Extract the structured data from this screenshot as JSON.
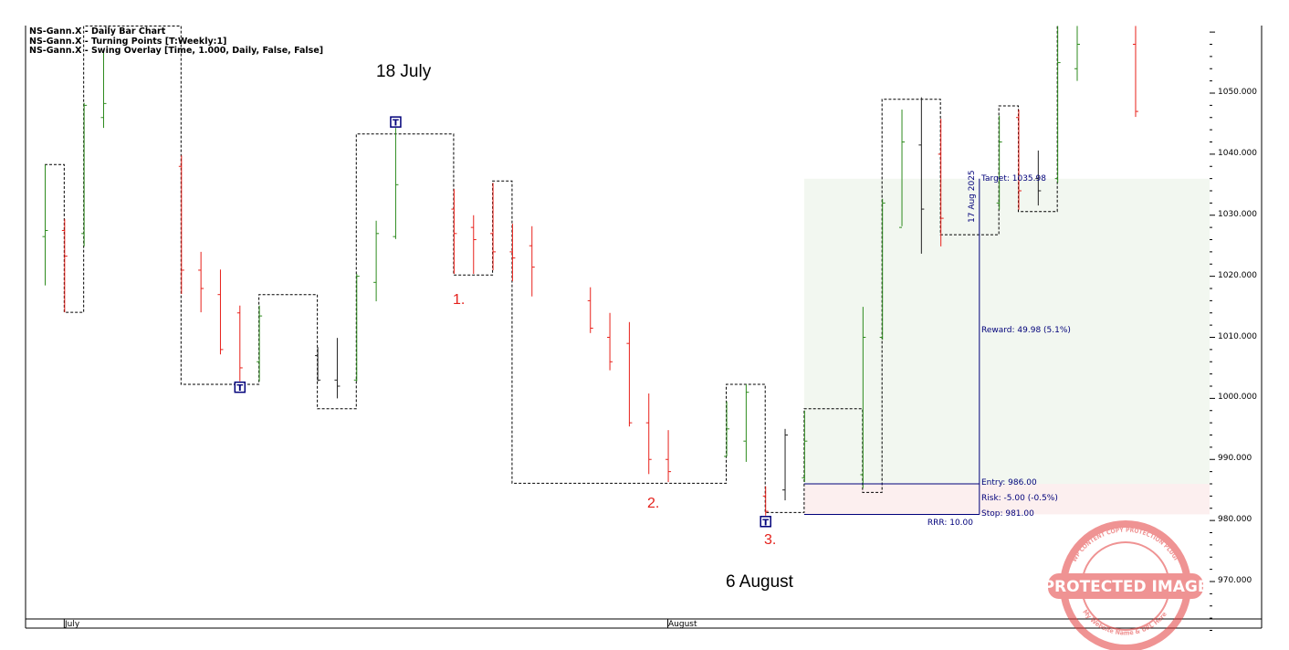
{
  "legend": [
    "NS-Gann.X - Daily Bar Chart",
    "NS-Gann.X - Turning Points [T:Weekly:1]",
    "NS-Gann.X - Swing Overlay [Time, 1.000, Daily, False, False]"
  ],
  "annotations": {
    "high_date": "18 July",
    "low_date": "6 August",
    "point1": "1.",
    "point2": "2.",
    "point3": "3."
  },
  "trade": {
    "date_label": "17 Aug 2025",
    "target_label": "Target: 1035.98",
    "reward_label": "Reward: 49.98 (5.1%)",
    "entry_label": "Entry: 986.00",
    "risk_label": "Risk: -5.00 (-0.5%)",
    "stop_label": "Stop: 981.00",
    "rrr_label": "RRR: 10.00"
  },
  "date_axis": {
    "month1": "July",
    "month2": "August"
  },
  "watermark": {
    "main": "PROTECTED IMAGE",
    "ring": "WP CONTENT COPY PROTECTION PLUGIN",
    "bottom": "My Website Name & URL Here"
  },
  "colors": {
    "up": "#2e8b1e",
    "down": "#e8201a",
    "neutral": "#222222",
    "label": "#00007a",
    "reward_zone": "#f2f7f0",
    "risk_zone": "#fcefef",
    "stamp": "#e33b3b"
  },
  "chart_data": {
    "type": "ohlc",
    "title": "NS-Gann.X - Daily Bar Chart",
    "x_unit": "calendar day index (0 = 30 June 2025)",
    "ylim": [
      961,
      1061
    ],
    "y_ticks": [
      "970.000",
      "980.000",
      "990.000",
      "1000.000",
      "1010.000",
      "1020.000",
      "1030.000",
      "1040.000",
      "1050.000"
    ],
    "y_tick_values": [
      970,
      980,
      990,
      1000,
      1010,
      1020,
      1030,
      1040,
      1050
    ],
    "bars_fields": [
      "day",
      "open",
      "high",
      "low",
      "close",
      "color"
    ],
    "bars": [
      [
        0,
        1026.5,
        1038.3,
        1018.5,
        1027.5,
        "up"
      ],
      [
        1,
        1027.5,
        1029.4,
        1014.1,
        1023.3,
        "down"
      ],
      [
        2,
        1027,
        1048.4,
        1024.9,
        1048,
        "up"
      ],
      [
        3,
        1046,
        1057,
        1044.3,
        1048.3,
        "up"
      ],
      [
        7,
        1038,
        1039.8,
        1017.1,
        1021,
        "down"
      ],
      [
        8,
        1021,
        1024,
        1014.1,
        1018,
        "down"
      ],
      [
        9,
        1017,
        1021.1,
        1007.2,
        1008,
        "down"
      ],
      [
        10,
        1014,
        1015.2,
        1002.8,
        1005,
        "down"
      ],
      [
        11,
        1006,
        1015.2,
        1002.8,
        1013.5,
        "up"
      ],
      [
        14,
        1007,
        1008.4,
        1002.8,
        1003,
        "neutral"
      ],
      [
        15,
        1003,
        1009.9,
        1000,
        1002,
        "neutral"
      ],
      [
        16,
        1003,
        1020.4,
        1002.8,
        1020,
        "up"
      ],
      [
        17,
        1019,
        1029.1,
        1015.9,
        1027,
        "up"
      ],
      [
        18,
        1026.5,
        1044.3,
        1026.1,
        1035,
        "up"
      ],
      [
        21,
        1031,
        1034.3,
        1020.4,
        1027,
        "down"
      ],
      [
        22,
        1028,
        1030,
        1020.4,
        1026,
        "down"
      ],
      [
        23,
        1027,
        1035.3,
        1021,
        1024,
        "down"
      ],
      [
        24,
        1024,
        1028.6,
        1019.2,
        1023,
        "down"
      ],
      [
        25,
        1025,
        1028.2,
        1016.7,
        1021.5,
        "down"
      ],
      [
        28,
        1016,
        1018.2,
        1010.7,
        1011.5,
        "down"
      ],
      [
        29,
        1010,
        1014,
        1004.6,
        1006,
        "down"
      ],
      [
        30,
        1009,
        1012.5,
        995.4,
        996,
        "down"
      ],
      [
        31,
        996,
        1000.8,
        987.6,
        990,
        "down"
      ],
      [
        32,
        990,
        994.8,
        986.3,
        988,
        "down"
      ],
      [
        35,
        990.5,
        999.5,
        990.5,
        995,
        "up"
      ],
      [
        36,
        993,
        1002.3,
        989.6,
        1001,
        "up"
      ],
      [
        37,
        984,
        985.6,
        980.8,
        981.5,
        "down"
      ],
      [
        38,
        985,
        995,
        983.3,
        994,
        "neutral"
      ],
      [
        39,
        987,
        998,
        986.3,
        993,
        "up"
      ],
      [
        42,
        987.5,
        1015,
        985.3,
        1010,
        "up"
      ],
      [
        43,
        1010,
        1032.7,
        1009.6,
        1032,
        "up"
      ],
      [
        44,
        1028,
        1047.3,
        1028.2,
        1042,
        "up"
      ],
      [
        45,
        1041.5,
        1049.3,
        1023.7,
        1031,
        "neutral"
      ],
      [
        46,
        1040,
        1045.8,
        1024.9,
        1029.5,
        "down"
      ],
      [
        49,
        1032,
        1046.3,
        1030.9,
        1042,
        "up"
      ],
      [
        50,
        1046,
        1047.3,
        1030.9,
        1034,
        "down"
      ],
      [
        51,
        1036,
        1040.6,
        1031.6,
        1034,
        "neutral"
      ],
      [
        52,
        1036,
        1061,
        1035.3,
        1055,
        "up"
      ],
      [
        53,
        1054,
        1061,
        1052,
        1058,
        "up"
      ],
      [
        56,
        1058,
        1061,
        1046.1,
        1047,
        "down"
      ]
    ],
    "swing_overlay": [
      [
        0,
        1038.3
      ],
      [
        1,
        1038.3
      ],
      [
        1,
        1014.1
      ],
      [
        2,
        1014.1
      ],
      [
        2,
        1061
      ],
      [
        7,
        1061
      ],
      [
        7,
        1002.3
      ],
      [
        11,
        1002.3
      ],
      [
        11,
        1017
      ],
      [
        14,
        1017
      ],
      [
        14,
        998.3
      ],
      [
        16,
        998.3
      ],
      [
        16,
        1043.3
      ],
      [
        21,
        1043.3
      ],
      [
        21,
        1020.2
      ],
      [
        23,
        1020.2
      ],
      [
        23,
        1035.6
      ],
      [
        24,
        1035.6
      ],
      [
        24,
        986.1
      ],
      [
        35,
        986.1
      ],
      [
        35,
        1002.3
      ],
      [
        37,
        1002.3
      ],
      [
        37,
        981.3
      ],
      [
        39,
        981.3
      ],
      [
        39,
        998.3
      ],
      [
        42,
        998.3
      ],
      [
        42,
        984.6
      ],
      [
        43,
        984.6
      ],
      [
        43,
        1049
      ],
      [
        46,
        1049
      ],
      [
        46,
        1026.8
      ],
      [
        49,
        1026.8
      ],
      [
        49,
        1047.9
      ],
      [
        50,
        1047.9
      ],
      [
        50,
        1030.6
      ],
      [
        52,
        1030.6
      ],
      [
        52,
        1061
      ]
    ],
    "turning_points": [
      {
        "day": 10,
        "price": 1002.8,
        "type": "low",
        "label": "T"
      },
      {
        "day": 18,
        "price": 1044.3,
        "type": "high",
        "label": "T"
      },
      {
        "day": 37,
        "price": 980.8,
        "type": "low",
        "label": "T"
      }
    ],
    "position": {
      "start_day": 39,
      "end_day": 48,
      "entry": 986.0,
      "target": 1035.98,
      "stop": 981.0
    },
    "month_markers": [
      {
        "day": 1,
        "label": "July"
      },
      {
        "day": 32,
        "label": "August"
      }
    ]
  }
}
